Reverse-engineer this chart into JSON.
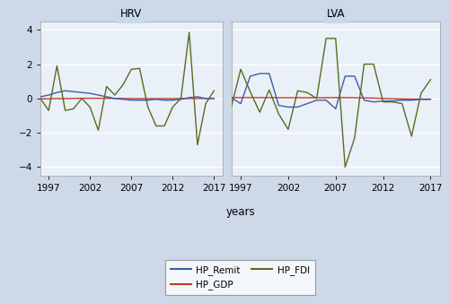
{
  "years": [
    1996,
    1997,
    1998,
    1999,
    2000,
    2001,
    2002,
    2003,
    2004,
    2005,
    2006,
    2007,
    2008,
    2009,
    2010,
    2011,
    2012,
    2013,
    2014,
    2015,
    2016,
    2017
  ],
  "HRV": {
    "HP_Remit": [
      0.1,
      0.2,
      0.35,
      0.45,
      0.4,
      0.35,
      0.3,
      0.2,
      0.1,
      0.0,
      -0.05,
      -0.1,
      -0.1,
      -0.1,
      -0.05,
      -0.1,
      -0.1,
      -0.05,
      0.05,
      0.1,
      0.0,
      0.0
    ],
    "HP_GDP": [
      -0.02,
      -0.02,
      -0.01,
      -0.01,
      0.0,
      0.01,
      0.01,
      0.01,
      0.01,
      0.0,
      0.0,
      -0.01,
      -0.01,
      -0.01,
      -0.01,
      -0.01,
      -0.01,
      0.0,
      0.0,
      0.0,
      0.0,
      0.0
    ],
    "HP_FDI": [
      0.0,
      -0.7,
      1.9,
      -0.7,
      -0.6,
      0.0,
      -0.5,
      -1.85,
      0.7,
      0.2,
      0.8,
      1.7,
      1.75,
      -0.5,
      -1.6,
      -1.6,
      -0.5,
      0.0,
      3.85,
      -2.7,
      -0.3,
      0.45
    ]
  },
  "LVA": {
    "HP_Remit": [
      0.05,
      -0.3,
      1.3,
      1.45,
      1.45,
      -0.4,
      -0.5,
      -0.5,
      -0.3,
      -0.1,
      -0.1,
      -0.6,
      1.3,
      1.3,
      -0.1,
      -0.2,
      -0.15,
      -0.15,
      -0.1,
      -0.1,
      -0.05,
      -0.05
    ],
    "HP_GDP": [
      0.05,
      0.05,
      0.05,
      0.05,
      0.05,
      0.04,
      0.04,
      0.04,
      0.04,
      0.04,
      0.04,
      0.05,
      0.05,
      0.04,
      0.03,
      0.02,
      0.0,
      -0.02,
      -0.03,
      -0.04,
      -0.04,
      -0.04
    ],
    "HP_FDI": [
      -0.5,
      1.7,
      0.4,
      -0.8,
      0.5,
      -0.9,
      -1.8,
      0.45,
      0.35,
      0.0,
      3.5,
      3.5,
      -4.0,
      -2.3,
      2.0,
      2.0,
      -0.2,
      -0.2,
      -0.3,
      -2.2,
      0.3,
      1.1
    ]
  },
  "ylim": [
    -4.5,
    4.5
  ],
  "yticks": [
    -4,
    -2,
    0,
    2,
    4
  ],
  "xticks": [
    1997,
    2002,
    2007,
    2012,
    2017
  ],
  "xlabel": "years",
  "colors": {
    "HP_Remit": "#3a5da8",
    "HP_GDP": "#c0392b",
    "HP_FDI": "#5a6b20"
  },
  "panel_titles": [
    "HRV",
    "LVA"
  ],
  "plot_bg_color": "#eaf0f8",
  "outer_bg": "#cdd8e8",
  "title_bg": "#c8d8ec",
  "legend_bg": "#ffffff",
  "grid_color": "#ffffff",
  "spine_color": "#aaaaaa"
}
